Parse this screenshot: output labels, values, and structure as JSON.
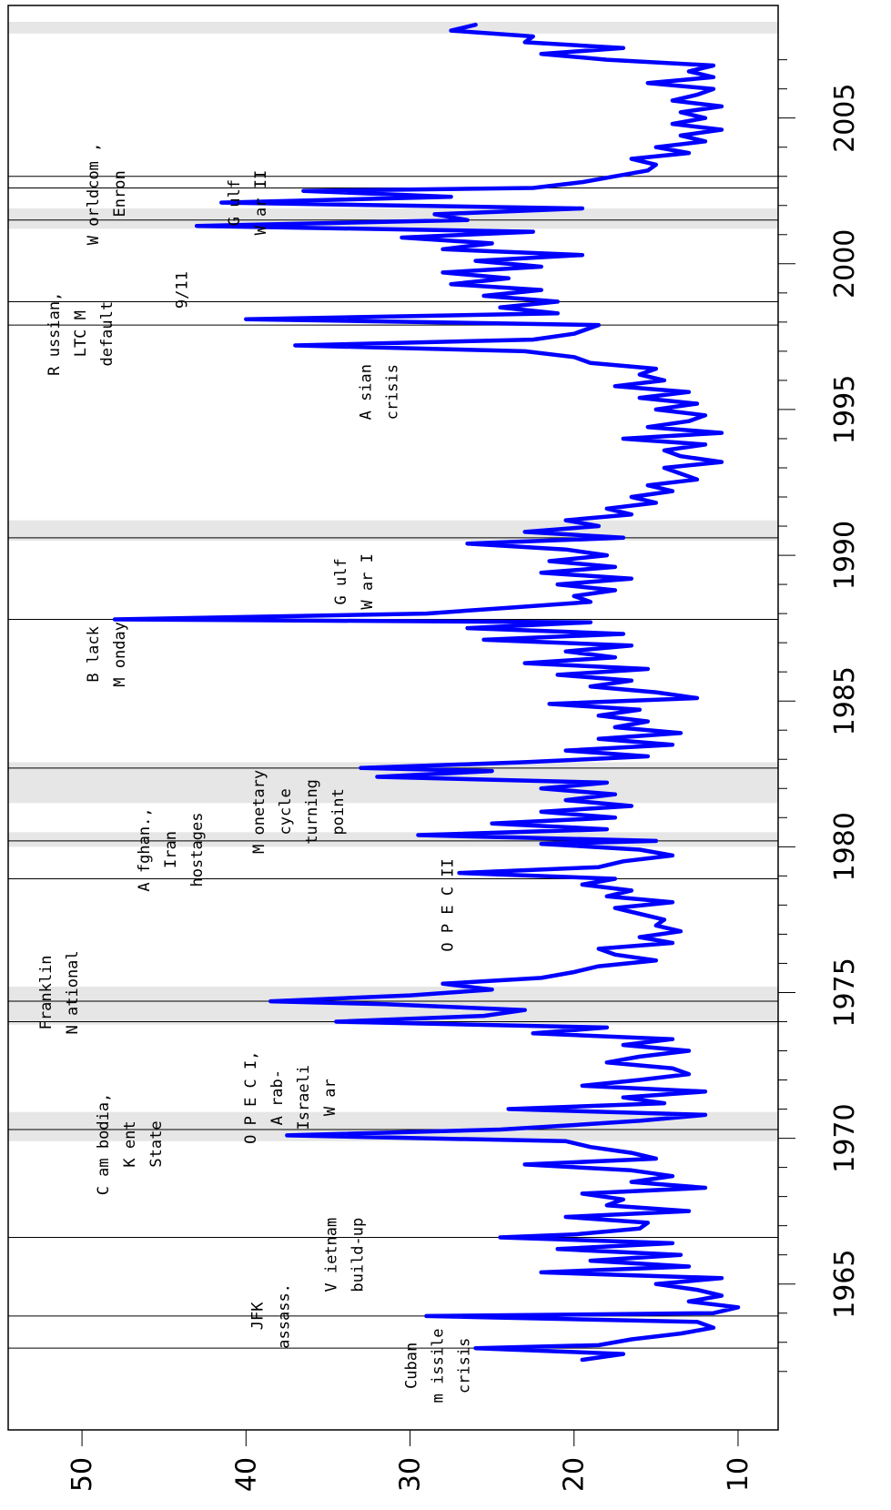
{
  "chart_data": {
    "type": "line",
    "orientation": "rotated-90-clockwise",
    "title": "",
    "xlabel": "",
    "ylabel": "",
    "xlim": [
      1960.9,
      2008.3
    ],
    "ylim": [
      8,
      54
    ],
    "x_ticks": [
      1965,
      1970,
      1975,
      1980,
      1985,
      1990,
      1995,
      2000,
      2005
    ],
    "x_tick_labels": [
      "1965",
      "1970",
      "1975",
      "1980",
      "1985",
      "1990",
      "1995",
      "2000",
      "2005"
    ],
    "x_minor_ticks": [
      1962,
      1963,
      1964,
      1966,
      1967,
      1968,
      1969,
      1971,
      1972,
      1973,
      1974,
      1976,
      1977,
      1978,
      1979,
      1981,
      1982,
      1983,
      1984,
      1986,
      1987,
      1988,
      1989,
      1991,
      1992,
      1993,
      1994,
      1996,
      1997,
      1998,
      1999,
      2001,
      2002,
      2003,
      2004,
      2006,
      2007
    ],
    "y_ticks": [
      10,
      20,
      30,
      40,
      50
    ],
    "y_tick_labels": [
      "10",
      "20",
      "30",
      "40",
      "50"
    ],
    "line_color": "#0000ff",
    "shade_color": "#e6e6e6",
    "shaded_periods": [
      [
        1969.9,
        1970.9
      ],
      [
        1973.9,
        1975.2
      ],
      [
        1980.0,
        1980.5
      ],
      [
        1981.5,
        1982.9
      ],
      [
        1990.5,
        1991.2
      ],
      [
        2001.2,
        2001.9
      ],
      [
        2007.9,
        2008.3
      ]
    ],
    "event_lines": [
      1962.8,
      1963.9,
      1966.6,
      1970.3,
      1974.0,
      1974.7,
      1978.9,
      1980.2,
      1982.7,
      1987.8,
      1990.6,
      1997.9,
      1998.7,
      2001.5,
      2002.6,
      2003.0
    ],
    "annotations": [
      {
        "lines": [
          "Cuban",
          "m issile",
          "crisis"
        ],
        "x": 1962.2,
        "y": 29.6
      },
      {
        "lines": [
          "JFK",
          "assass."
        ],
        "x": 1963.9,
        "y": 39.0
      },
      {
        "lines": [
          "V ietnam",
          "build-up"
        ],
        "x": 1966.0,
        "y": 34.5
      },
      {
        "lines": [
          "C am bodia,",
          "K ent",
          "State"
        ],
        "x": 1969.8,
        "y": 48.4
      },
      {
        "lines": [
          "O P E C I,",
          "A rab-",
          "Israeli",
          "W ar"
        ],
        "x": 1971.4,
        "y": 39.4
      },
      {
        "lines": [
          "Franklin",
          "N ational"
        ],
        "x": 1975.0,
        "y": 51.9
      },
      {
        "lines": [
          "O P E C II"
        ],
        "x": 1978.0,
        "y": 27.4
      },
      {
        "lines": [
          "A fghan.,",
          "Iran",
          "hostages"
        ],
        "x": 1979.9,
        "y": 45.9
      },
      {
        "lines": [
          "M onetary",
          "cycle",
          "turning",
          "point"
        ],
        "x": 1981.2,
        "y": 38.9
      },
      {
        "lines": [
          "B lack",
          "M onday"
        ],
        "x": 1986.6,
        "y": 49.0
      },
      {
        "lines": [
          "G ulf",
          "W ar I"
        ],
        "x": 1989.1,
        "y": 33.9
      },
      {
        "lines": [
          "A sian",
          "crisis"
        ],
        "x": 1995.6,
        "y": 32.4
      },
      {
        "lines": [
          "R ussian,",
          "LTC M",
          "default"
        ],
        "x": 1997.6,
        "y": 51.4
      },
      {
        "lines": [
          "9/11"
        ],
        "x": 1999.1,
        "y": 43.6
      },
      {
        "lines": [
          "W orldcom ,",
          "Enron"
        ],
        "x": 2002.4,
        "y": 49.0
      },
      {
        "lines": [
          "G ulf",
          "W ar II"
        ],
        "x": 2002.1,
        "y": 40.4
      }
    ],
    "series": [
      {
        "x": [
          1962.4,
          1962.6,
          1962.8,
          1962.9,
          1963.1,
          1963.3,
          1963.5,
          1963.7,
          1963.9,
          1964.0,
          1964.2,
          1964.4,
          1964.6,
          1964.8,
          1965.0,
          1965.2,
          1965.4,
          1965.6,
          1965.8,
          1966.0,
          1966.2,
          1966.4,
          1966.6,
          1966.7,
          1966.9,
          1967.1,
          1967.3,
          1967.5,
          1967.7,
          1967.9,
          1968.1,
          1968.3,
          1968.5,
          1968.7,
          1968.9,
          1969.1,
          1969.3,
          1969.5,
          1969.7,
          1969.9,
          1970.1,
          1970.3,
          1970.4,
          1970.6,
          1970.8,
          1971.0,
          1971.2,
          1971.4,
          1971.6,
          1971.8,
          1972.0,
          1972.2,
          1972.4,
          1972.6,
          1972.8,
          1973.0,
          1973.2,
          1973.4,
          1973.6,
          1973.8,
          1974.0,
          1974.2,
          1974.4,
          1974.6,
          1974.7,
          1974.9,
          1975.1,
          1975.3,
          1975.5,
          1975.7,
          1975.9,
          1976.1,
          1976.3,
          1976.5,
          1976.7,
          1976.9,
          1977.1,
          1977.3,
          1977.5,
          1977.7,
          1977.9,
          1978.1,
          1978.3,
          1978.5,
          1978.7,
          1978.9,
          1979.1,
          1979.3,
          1979.5,
          1979.7,
          1979.9,
          1980.1,
          1980.2,
          1980.4,
          1980.6,
          1980.8,
          1981.0,
          1981.2,
          1981.4,
          1981.6,
          1981.8,
          1982.0,
          1982.2,
          1982.4,
          1982.6,
          1982.7,
          1982.9,
          1983.1,
          1983.3,
          1983.5,
          1983.7,
          1983.9,
          1984.1,
          1984.3,
          1984.5,
          1984.7,
          1984.9,
          1985.1,
          1985.3,
          1985.5,
          1985.7,
          1985.9,
          1986.1,
          1986.3,
          1986.5,
          1986.7,
          1986.9,
          1987.1,
          1987.3,
          1987.5,
          1987.7,
          1987.8,
          1988.0,
          1988.2,
          1988.4,
          1988.6,
          1988.8,
          1989.0,
          1989.2,
          1989.4,
          1989.6,
          1989.8,
          1990.0,
          1990.2,
          1990.4,
          1990.6,
          1990.8,
          1991.0,
          1991.2,
          1991.4,
          1991.6,
          1991.8,
          1992.0,
          1992.2,
          1992.4,
          1992.6,
          1992.8,
          1993.0,
          1993.2,
          1993.4,
          1993.6,
          1993.8,
          1994.0,
          1994.2,
          1994.4,
          1994.6,
          1994.8,
          1995.0,
          1995.2,
          1995.4,
          1995.6,
          1995.8,
          1996.0,
          1996.2,
          1996.4,
          1996.6,
          1996.8,
          1997.0,
          1997.2,
          1997.4,
          1997.6,
          1997.9,
          1998.1,
          1998.3,
          1998.5,
          1998.7,
          1998.9,
          1999.1,
          1999.3,
          1999.5,
          1999.7,
          1999.9,
          2000.1,
          2000.3,
          2000.5,
          2000.7,
          2000.9,
          2001.1,
          2001.3,
          2001.5,
          2001.7,
          2001.9,
          2002.1,
          2002.3,
          2002.5,
          2002.6,
          2002.8,
          2003.0,
          2003.2,
          2003.4,
          2003.6,
          2003.8,
          2004.0,
          2004.2,
          2004.4,
          2004.6,
          2004.8,
          2005.0,
          2005.2,
          2005.4,
          2005.6,
          2005.8,
          2006.0,
          2006.2,
          2006.4,
          2006.6,
          2006.8,
          2007.0,
          2007.2,
          2007.4,
          2007.6,
          2007.8,
          2008.0,
          2008.2
        ],
        "values": [
          19.5,
          17.0,
          26.0,
          18.5,
          16.5,
          13.5,
          11.5,
          12.5,
          29.0,
          11.5,
          10.0,
          13.0,
          11.0,
          12.5,
          15.0,
          11.0,
          22.0,
          13.0,
          19.0,
          13.5,
          21.0,
          14.0,
          24.5,
          20.0,
          16.0,
          15.5,
          20.5,
          13.0,
          18.0,
          17.0,
          19.5,
          12.0,
          16.5,
          14.0,
          16.5,
          23.0,
          15.0,
          16.5,
          19.0,
          20.5,
          37.5,
          24.5,
          21.5,
          16.0,
          12.0,
          24.0,
          14.5,
          17.0,
          12.0,
          19.5,
          16.0,
          13.0,
          14.0,
          18.0,
          16.0,
          13.0,
          17.0,
          14.0,
          22.5,
          18.0,
          34.5,
          25.5,
          23.0,
          31.5,
          38.5,
          30.0,
          25.0,
          28.0,
          22.0,
          20.0,
          18.5,
          15.0,
          17.5,
          18.5,
          14.0,
          16.0,
          13.5,
          15.0,
          14.5,
          16.0,
          17.5,
          14.0,
          18.0,
          16.5,
          19.5,
          17.5,
          27.0,
          18.5,
          17.0,
          14.0,
          16.0,
          22.0,
          15.0,
          29.5,
          18.0,
          25.0,
          17.5,
          22.0,
          16.5,
          20.5,
          17.5,
          22.0,
          18.0,
          32.0,
          25.0,
          33.0,
          23.0,
          15.5,
          20.5,
          14.0,
          18.5,
          13.5,
          17.5,
          15.5,
          18.5,
          16.0,
          21.5,
          12.5,
          15.0,
          19.0,
          16.5,
          21.0,
          15.5,
          23.0,
          17.5,
          20.5,
          16.5,
          25.5,
          17.0,
          26.5,
          19.0,
          48.0,
          29.0,
          24.0,
          19.0,
          20.0,
          17.5,
          21.0,
          16.5,
          22.0,
          17.5,
          21.5,
          18.0,
          20.5,
          26.5,
          17.0,
          23.0,
          18.5,
          20.5,
          16.5,
          18.0,
          15.0,
          16.5,
          14.0,
          15.5,
          12.5,
          13.5,
          14.5,
          11.0,
          13.5,
          14.5,
          12.0,
          17.0,
          11.0,
          15.5,
          13.0,
          12.0,
          15.0,
          12.5,
          16.0,
          13.0,
          17.5,
          14.5,
          16.0,
          15.0,
          19.0,
          20.0,
          23.0,
          37.0,
          22.5,
          20.0,
          18.5,
          40.0,
          21.0,
          24.5,
          21.0,
          25.5,
          22.0,
          27.5,
          24.0,
          28.0,
          22.0,
          26.0,
          19.5,
          28.0,
          25.0,
          30.5,
          22.5,
          43.0,
          26.5,
          28.5,
          19.5,
          41.5,
          27.5,
          36.5,
          22.5,
          19.5,
          17.5,
          15.5,
          15.0,
          16.5,
          13.0,
          15.0,
          12.0,
          13.5,
          11.0,
          14.0,
          12.0,
          13.5,
          11.0,
          14.0,
          12.5,
          11.5,
          15.5,
          11.5,
          13.0,
          11.5,
          18.0,
          22.0,
          17.0,
          23.0,
          22.5,
          27.5,
          26.0
        ]
      }
    ]
  }
}
